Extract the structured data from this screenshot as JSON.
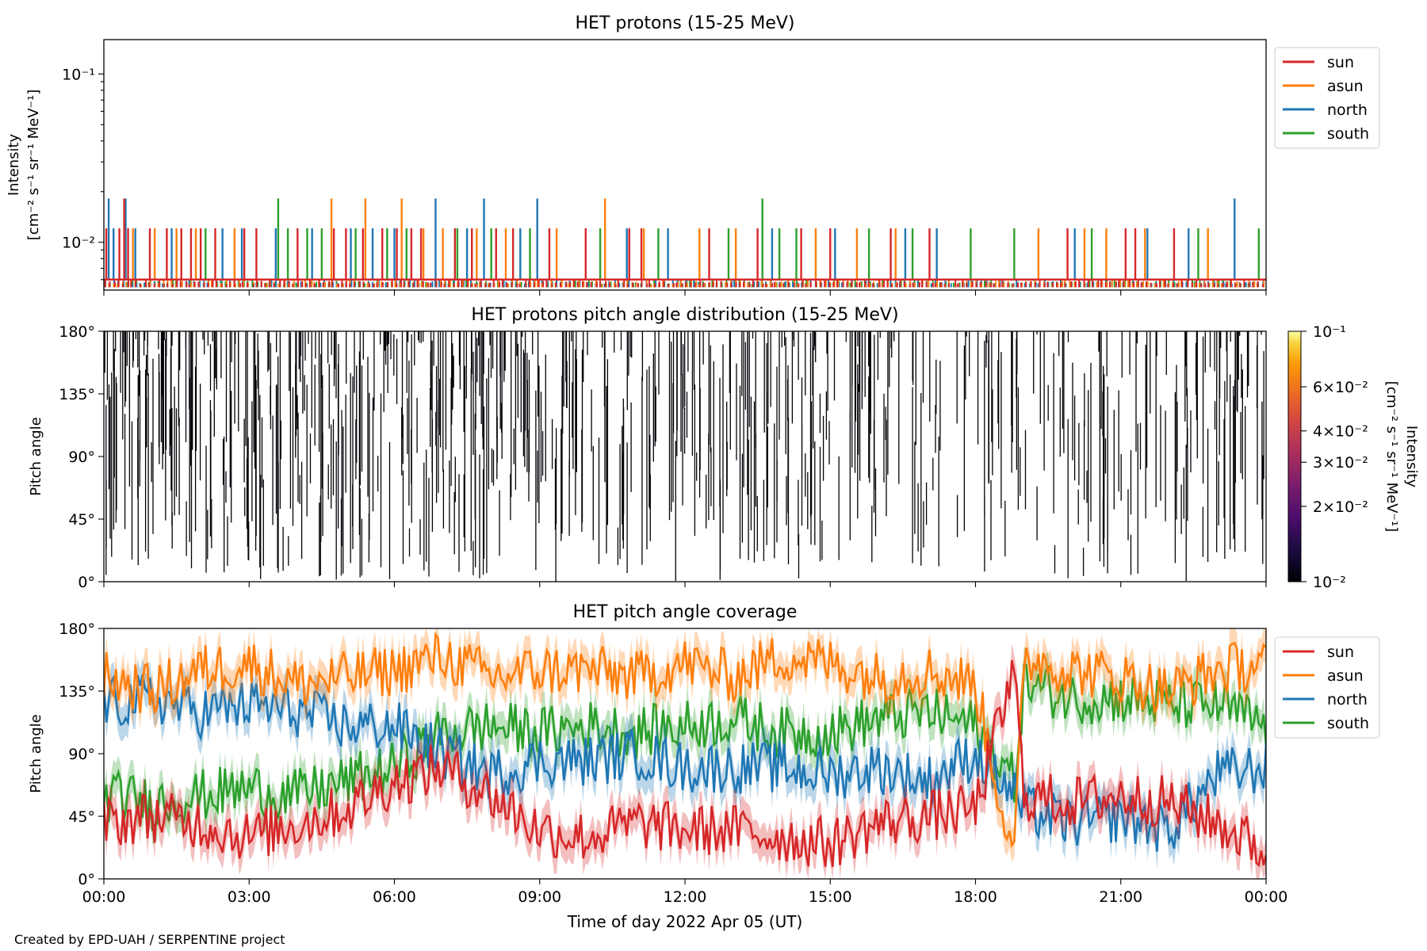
{
  "footer": "Created by EPD-UAH / SERPENTINE project",
  "shared_xlabel": "Time of day 2022 Apr 05 (UT)",
  "colors": {
    "sun": "#d62728",
    "asun": "#ff7f0e",
    "north": "#1f77b4",
    "south": "#2ca02c"
  },
  "chart_data": [
    {
      "type": "line",
      "title": "HET protons (15-25 MeV)",
      "ylabel": [
        "Intensity",
        "[cm⁻² s⁻¹ sr⁻¹ MeV⁻¹]"
      ],
      "yscale": "log",
      "ylim": [
        0.0052,
        0.16
      ],
      "yticks": [
        {
          "value": 0.1,
          "label": "10⁻¹"
        },
        {
          "value": 0.01,
          "label": "10⁻²"
        }
      ],
      "xlim_hours": [
        0,
        24
      ],
      "x_ticklabels": [
        "00:00",
        "03:00",
        "06:00",
        "09:00",
        "12:00",
        "15:00",
        "18:00",
        "21:00",
        "00:00"
      ],
      "legend": {
        "placement": "outside-right-top",
        "entries": [
          "sun",
          "asun",
          "north",
          "south"
        ]
      },
      "baseline_intensity": 0.006,
      "spike_levels": [
        0.0121,
        0.0182
      ],
      "series": [
        {
          "name": "sun",
          "color": "#d62728",
          "spikes": [
            [
              0.05,
              0.0121
            ],
            [
              0.32,
              0.0121
            ],
            [
              0.42,
              0.0182
            ],
            [
              0.5,
              0.0121
            ],
            [
              0.95,
              0.0121
            ],
            [
              1.3,
              0.0121
            ],
            [
              1.6,
              0.0121
            ],
            [
              1.8,
              0.0121
            ],
            [
              2.0,
              0.0121
            ],
            [
              2.3,
              0.0121
            ],
            [
              2.9,
              0.0121
            ],
            [
              3.15,
              0.0121
            ],
            [
              4.0,
              0.0121
            ],
            [
              4.75,
              0.0121
            ],
            [
              5.0,
              0.0121
            ],
            [
              5.35,
              0.0121
            ],
            [
              5.75,
              0.0121
            ],
            [
              6.05,
              0.0121
            ],
            [
              6.35,
              0.0121
            ],
            [
              6.55,
              0.0121
            ],
            [
              7.25,
              0.0121
            ],
            [
              7.6,
              0.0121
            ],
            [
              8.1,
              0.0121
            ],
            [
              8.45,
              0.0121
            ],
            [
              9.2,
              0.0121
            ],
            [
              9.95,
              0.0121
            ],
            [
              10.85,
              0.0121
            ],
            [
              11.1,
              0.0121
            ],
            [
              12.5,
              0.0121
            ],
            [
              13.5,
              0.0121
            ],
            [
              14.4,
              0.0121
            ],
            [
              15.0,
              0.0121
            ],
            [
              16.25,
              0.0121
            ],
            [
              17.05,
              0.0121
            ],
            [
              19.9,
              0.0121
            ],
            [
              21.1,
              0.0121
            ],
            [
              21.3,
              0.0121
            ],
            [
              22.1,
              0.0121
            ]
          ]
        },
        {
          "name": "asun",
          "color": "#ff7f0e",
          "spikes": [
            [
              0.6,
              0.0121
            ],
            [
              1.05,
              0.0121
            ],
            [
              1.5,
              0.0121
            ],
            [
              1.9,
              0.0121
            ],
            [
              2.7,
              0.0121
            ],
            [
              4.7,
              0.0182
            ],
            [
              5.4,
              0.0182
            ],
            [
              6.15,
              0.0182
            ],
            [
              6.6,
              0.0121
            ],
            [
              7.0,
              0.0121
            ],
            [
              7.7,
              0.0121
            ],
            [
              8.3,
              0.0121
            ],
            [
              9.35,
              0.0121
            ],
            [
              10.35,
              0.0182
            ],
            [
              11.15,
              0.0121
            ],
            [
              12.3,
              0.0121
            ],
            [
              13.05,
              0.0121
            ],
            [
              14.7,
              0.0121
            ],
            [
              15.55,
              0.0121
            ],
            [
              16.35,
              0.0121
            ],
            [
              19.3,
              0.0121
            ],
            [
              20.25,
              0.0121
            ],
            [
              20.7,
              0.0121
            ],
            [
              21.5,
              0.0121
            ],
            [
              22.8,
              0.0121
            ]
          ]
        },
        {
          "name": "north",
          "color": "#1f77b4",
          "spikes": [
            [
              0.1,
              0.0182
            ],
            [
              0.2,
              0.0121
            ],
            [
              0.45,
              0.0182
            ],
            [
              0.65,
              0.0121
            ],
            [
              1.4,
              0.0121
            ],
            [
              2.45,
              0.0121
            ],
            [
              2.85,
              0.0121
            ],
            [
              3.55,
              0.0121
            ],
            [
              4.3,
              0.0121
            ],
            [
              5.1,
              0.0121
            ],
            [
              5.55,
              0.0121
            ],
            [
              6.0,
              0.0121
            ],
            [
              6.85,
              0.0182
            ],
            [
              7.5,
              0.0121
            ],
            [
              7.85,
              0.0182
            ],
            [
              8.6,
              0.0121
            ],
            [
              8.95,
              0.0182
            ],
            [
              10.8,
              0.0121
            ],
            [
              11.65,
              0.0121
            ],
            [
              13.8,
              0.0121
            ],
            [
              15.1,
              0.0121
            ],
            [
              16.55,
              0.0121
            ],
            [
              17.2,
              0.0121
            ],
            [
              20.05,
              0.0121
            ],
            [
              21.55,
              0.0121
            ],
            [
              22.4,
              0.0121
            ],
            [
              23.35,
              0.0182
            ]
          ]
        },
        {
          "name": "south",
          "color": "#2ca02c",
          "spikes": [
            [
              2.1,
              0.0121
            ],
            [
              3.6,
              0.0182
            ],
            [
              3.8,
              0.0121
            ],
            [
              4.2,
              0.0121
            ],
            [
              4.5,
              0.0121
            ],
            [
              5.2,
              0.0121
            ],
            [
              5.85,
              0.0121
            ],
            [
              6.25,
              0.0121
            ],
            [
              7.3,
              0.0121
            ],
            [
              8.0,
              0.0121
            ],
            [
              8.8,
              0.0121
            ],
            [
              10.25,
              0.0121
            ],
            [
              11.45,
              0.0121
            ],
            [
              12.9,
              0.0121
            ],
            [
              13.6,
              0.0182
            ],
            [
              13.95,
              0.0121
            ],
            [
              14.3,
              0.0121
            ],
            [
              15.8,
              0.0121
            ],
            [
              16.7,
              0.0121
            ],
            [
              17.9,
              0.0121
            ],
            [
              18.8,
              0.0121
            ],
            [
              20.4,
              0.0121
            ],
            [
              22.6,
              0.0121
            ],
            [
              23.85,
              0.0121
            ]
          ]
        }
      ]
    },
    {
      "type": "heatmap",
      "title": "HET protons pitch angle distribution (15-25 MeV)",
      "ylabel": "Pitch angle",
      "ylim": [
        0,
        180
      ],
      "yticks": [
        {
          "value": 0,
          "label": "0°"
        },
        {
          "value": 45,
          "label": "45°"
        },
        {
          "value": 90,
          "label": "90°"
        },
        {
          "value": 135,
          "label": "135°"
        },
        {
          "value": 180,
          "label": "180°"
        }
      ],
      "xlim_hours": [
        0,
        24
      ],
      "colorbar": {
        "label": [
          "Intensity",
          "[cm⁻² s⁻¹ sr⁻¹ MeV⁻¹]"
        ],
        "scale": "log",
        "range": [
          0.01,
          0.1
        ],
        "colormap": "inferno",
        "ticks": [
          {
            "value": 0.1,
            "label": "10⁻¹"
          },
          {
            "value": 0.06,
            "label": "6×10⁻²"
          },
          {
            "value": 0.04,
            "label": "4×10⁻²"
          },
          {
            "value": 0.03,
            "label": "3×10⁻²"
          },
          {
            "value": 0.02,
            "label": "2×10⁻²"
          },
          {
            "value": 0.01,
            "label": "10⁻²"
          }
        ]
      },
      "note": "dense sparse vertical streaks at lowest intensity (near black) over the whole day"
    },
    {
      "type": "line",
      "title": "HET pitch angle coverage",
      "ylabel": "Pitch angle",
      "xlabel": "Time of day 2022 Apr 05 (UT)",
      "ylim": [
        0,
        180
      ],
      "yticks": [
        {
          "value": 0,
          "label": "0°"
        },
        {
          "value": 45,
          "label": "45°"
        },
        {
          "value": 90,
          "label": "90°"
        },
        {
          "value": 135,
          "label": "135°"
        },
        {
          "value": 180,
          "label": "180°"
        }
      ],
      "xlim_hours": [
        0,
        24
      ],
      "x_ticklabels": [
        "00:00",
        "03:00",
        "06:00",
        "09:00",
        "12:00",
        "15:00",
        "18:00",
        "21:00",
        "00:00"
      ],
      "legend": {
        "placement": "outside-right-top",
        "entries": [
          "sun",
          "asun",
          "north",
          "south"
        ]
      },
      "shaded_band_halfwidth_deg": 12,
      "series": [
        {
          "name": "sun",
          "color": "#d62728",
          "x": [
            0,
            1,
            2,
            3,
            4,
            5,
            6,
            7,
            8,
            9,
            10,
            11,
            12,
            13,
            14,
            15,
            16,
            17,
            18,
            18.8,
            19,
            20,
            21,
            22,
            23,
            24
          ],
          "y": [
            40,
            45,
            40,
            30,
            40,
            50,
            70,
            80,
            60,
            35,
            30,
            40,
            35,
            35,
            30,
            25,
            40,
            45,
            50,
            150,
            60,
            55,
            60,
            55,
            40,
            20
          ]
        },
        {
          "name": "asun",
          "color": "#ff7f0e",
          "x": [
            0,
            1,
            2,
            3,
            4,
            5,
            6,
            7,
            8,
            9,
            10,
            11,
            12,
            13,
            14,
            15,
            16,
            17,
            18,
            18.8,
            19,
            20,
            21,
            22,
            23,
            24
          ],
          "y": [
            145,
            135,
            150,
            155,
            140,
            145,
            150,
            160,
            145,
            150,
            150,
            145,
            155,
            145,
            160,
            155,
            145,
            150,
            140,
            10,
            160,
            150,
            145,
            135,
            150,
            155
          ]
        },
        {
          "name": "north",
          "color": "#1f77b4",
          "x": [
            0,
            1,
            2,
            3,
            4,
            5,
            6,
            7,
            8,
            9,
            10,
            11,
            12,
            13,
            14,
            15,
            16,
            17,
            18,
            18.8,
            19,
            20,
            21,
            22,
            23,
            24
          ],
          "y": [
            125,
            130,
            120,
            125,
            120,
            110,
            110,
            90,
            75,
            85,
            85,
            90,
            80,
            80,
            80,
            75,
            80,
            70,
            90,
            60,
            50,
            40,
            45,
            35,
            75,
            80
          ]
        },
        {
          "name": "south",
          "color": "#2ca02c",
          "x": [
            0,
            1,
            2,
            3,
            4,
            5,
            6,
            7,
            8,
            9,
            10,
            11,
            12,
            13,
            14,
            15,
            16,
            17,
            18,
            18.8,
            19,
            20,
            21,
            22,
            23,
            24
          ],
          "y": [
            60,
            55,
            60,
            65,
            60,
            70,
            80,
            105,
            110,
            105,
            110,
            105,
            110,
            115,
            105,
            105,
            115,
            120,
            110,
            70,
            140,
            130,
            130,
            125,
            125,
            110
          ]
        }
      ]
    }
  ]
}
